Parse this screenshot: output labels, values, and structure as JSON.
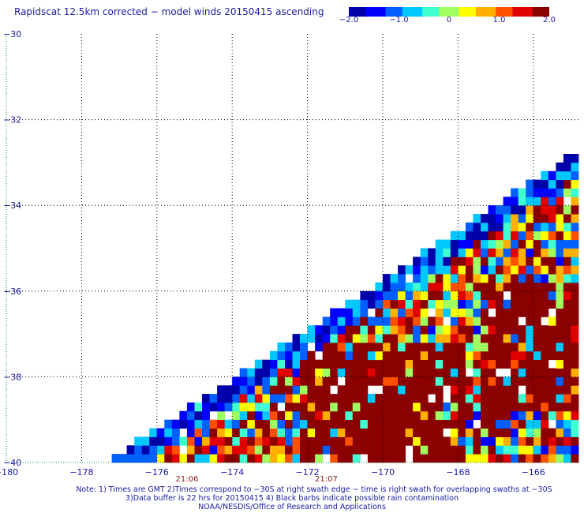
{
  "title": "Rapidscat 12.5km corrected − model winds 20150415 ascending",
  "colorbar": {
    "colors": [
      "#0000aa",
      "#0000ff",
      "#0060ff",
      "#00c8ff",
      "#40ffd0",
      "#a0ff60",
      "#ffff00",
      "#ffb000",
      "#ff5000",
      "#e00000",
      "#8b0000"
    ],
    "ticks": [
      "−2.0",
      "−1.0",
      "0",
      "1.0",
      "2.0"
    ],
    "range": [
      -2.0,
      2.0
    ]
  },
  "chart_data": {
    "type": "heatmap",
    "title": "Rapidscat 12.5km corrected − model winds 20150415 ascending",
    "xlim": [
      -180,
      -164.8
    ],
    "ylim": [
      -40,
      -30
    ],
    "x_ticks": [
      "−180",
      "−178",
      "−176",
      "−174",
      "−172",
      "−170",
      "−168",
      "−166"
    ],
    "y_ticks": [
      "−30",
      "−32",
      "−34",
      "−36",
      "−38",
      "−40"
    ],
    "grid": true,
    "time_labels": [
      {
        "text": "21:06",
        "lon": -175.2
      },
      {
        "text": "21:07",
        "lon": -171.5
      }
    ],
    "value_range": [
      -2.0,
      2.0
    ],
    "swath_edge": [
      [
        -177.3,
        -40
      ],
      [
        -165.4,
        -33.1
      ]
    ],
    "zones": [
      {
        "name": "upper-right-strong-positive",
        "lon": [
          -167.6,
          -164.8
        ],
        "lat": [
          -38.8,
          -35.8
        ],
        "value": 1.9
      },
      {
        "name": "central-strong-positive",
        "lon": [
          -172.3,
          -168.0
        ],
        "lat": [
          -40,
          -37.3
        ],
        "value": 1.9
      },
      {
        "name": "swath-edge-negative",
        "distance_from_edge": [
          0,
          0.6
        ],
        "value": -1.7
      }
    ]
  },
  "notes": {
    "line1": "Note: 1) Times are GMT 2)Times correspond to −30S at right swath edge − time is right swath for overlapping swaths at −30S",
    "line2": "3)Data buffer is 22 hrs for 20150415 4) Black barbs indicate possible rain contamination",
    "line3": "NOAA/NESDIS/Office of Research and Applications"
  }
}
